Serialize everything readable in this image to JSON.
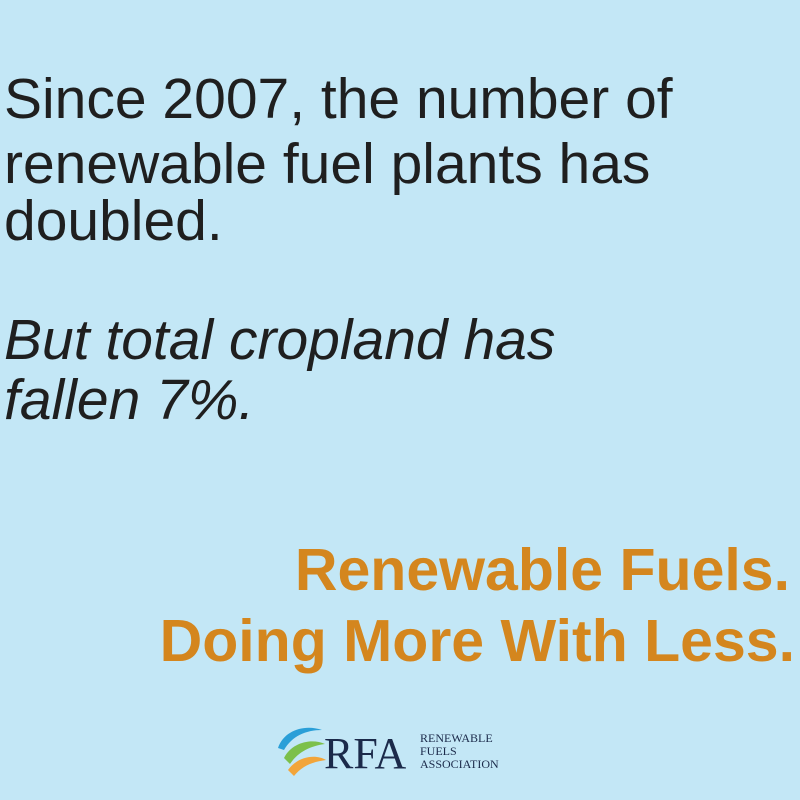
{
  "statement": {
    "lines": [
      "Since 2007, the number of",
      "renewable fuel plants has",
      "doubled."
    ]
  },
  "contrast": {
    "lines": [
      "But total cropland has",
      "fallen 7%."
    ]
  },
  "tagline": {
    "lines": [
      "Renewable Fuels.",
      "Doing More With Less."
    ]
  },
  "logo": {
    "acronym": "RFA",
    "name_lines": [
      "RENEWABLE",
      "FUELS",
      "ASSOCIATION"
    ]
  }
}
